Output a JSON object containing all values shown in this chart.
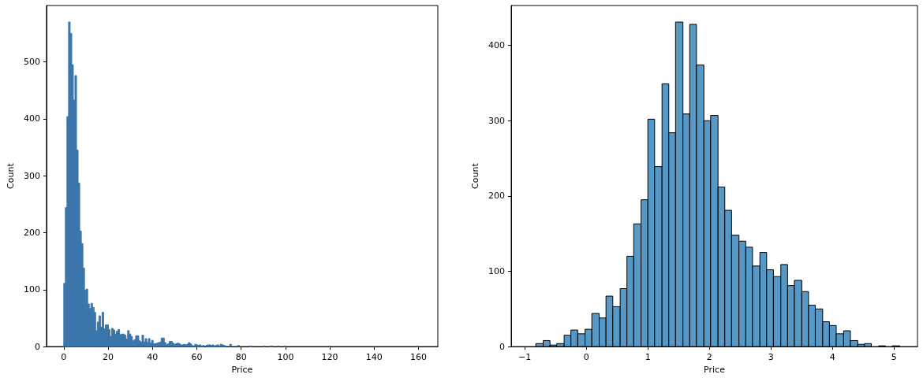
{
  "chart_data": [
    {
      "type": "histogram",
      "xlabel": "Price",
      "ylabel": "Count",
      "color": "#3b76ab",
      "bins": [
        0,
        0.72,
        1.44,
        2.16,
        2.88,
        3.6,
        4.32,
        5.04,
        5.76,
        6.48,
        7.2,
        7.92,
        8.64,
        9.36,
        10.08,
        10.8,
        11.52,
        12.24,
        12.96,
        13.68,
        14.4,
        15.12,
        15.84,
        16.56,
        17.28,
        18,
        18.72,
        19.44,
        20.16,
        20.88,
        21.6,
        22.32,
        23.04,
        23.76,
        24.48,
        25.2,
        25.92,
        26.64,
        27.36,
        28.08,
        28.8,
        29.52,
        30.24,
        30.96,
        31.68,
        32.4,
        33.12,
        33.84,
        34.56,
        35.28,
        36,
        36.72,
        37.44,
        38.16,
        38.88,
        39.6,
        40.32,
        41.04,
        41.76,
        42.48,
        43.2,
        43.92,
        44.64,
        45.36,
        46.08,
        46.8,
        47.52,
        48.24,
        48.96,
        49.68,
        50.4,
        51.12,
        51.84,
        52.56,
        53.28,
        54,
        54.72,
        55.44,
        56.16,
        56.88,
        57.6,
        58.32,
        59.04,
        59.76,
        60.48,
        61.2,
        61.92,
        62.64,
        63.36,
        64.08,
        64.8,
        65.52,
        66.24,
        66.96,
        67.68,
        68.4,
        69.12,
        69.84,
        70.56,
        71.28,
        72,
        72.72,
        73.44,
        74.88,
        75.6,
        78.48,
        79.2,
        83.52,
        84.24,
        84.96,
        90,
        90.72,
        92.88,
        93.6,
        94.32,
        96.48,
        97.2,
        99.36,
        100.08,
        119.52,
        120.24,
        159.12,
        159.84
      ],
      "values": [
        111,
        244,
        404,
        570,
        550,
        495,
        433,
        476,
        345,
        287,
        203,
        181,
        138,
        99,
        101,
        75,
        67,
        76,
        69,
        60,
        28,
        43,
        54,
        34,
        60,
        31,
        38,
        38,
        30,
        18,
        32,
        29,
        22,
        27,
        30,
        21,
        22,
        22,
        20,
        13,
        28,
        22,
        18,
        10,
        12,
        19,
        19,
        10,
        8,
        20,
        8,
        14,
        7,
        14,
        6,
        11,
        5,
        5,
        6,
        7,
        8,
        15,
        15,
        7,
        3,
        5,
        9,
        9,
        6,
        4,
        5,
        6,
        5,
        3,
        3,
        4,
        3,
        4,
        7,
        5,
        2,
        1,
        4,
        3,
        2,
        3,
        1,
        2,
        0,
        2,
        3,
        3,
        2,
        3,
        1,
        2,
        3,
        1,
        4,
        3,
        2,
        1,
        0,
        4,
        0,
        2,
        0,
        1,
        1,
        0,
        1,
        0,
        1,
        1,
        0,
        1,
        0,
        1,
        0,
        1,
        0,
        1
      ],
      "xlim": [
        -7.8,
        168.7
      ],
      "xticks": [
        0,
        20,
        40,
        60,
        80,
        100,
        120,
        140,
        160
      ],
      "ylim": [
        0,
        599
      ],
      "yticks": [
        0,
        100,
        200,
        300,
        400,
        500
      ]
    },
    {
      "type": "histogram",
      "xlabel": "Price",
      "ylabel": "Count",
      "color": "#5799c6",
      "bins": [
        -0.82,
        -0.7,
        -0.59,
        -0.48,
        -0.36,
        -0.25,
        -0.14,
        -0.02,
        0.09,
        0.21,
        0.32,
        0.43,
        0.55,
        0.66,
        0.77,
        0.89,
        1.0,
        1.11,
        1.23,
        1.34,
        1.45,
        1.57,
        1.68,
        1.79,
        1.91,
        2.02,
        2.14,
        2.25,
        2.36,
        2.48,
        2.59,
        2.7,
        2.82,
        2.93,
        3.04,
        3.16,
        3.27,
        3.38,
        3.5,
        3.61,
        3.72,
        3.84,
        3.95,
        4.06,
        4.18,
        4.29,
        4.41,
        4.52,
        4.63,
        4.75,
        4.86,
        4.97,
        5.09
      ],
      "values": [
        4,
        8,
        2,
        4,
        15,
        22,
        17,
        23,
        44,
        38,
        67,
        53,
        77,
        120,
        163,
        195,
        302,
        239,
        349,
        284,
        431,
        309,
        428,
        374,
        300,
        307,
        212,
        181,
        148,
        140,
        132,
        107,
        125,
        102,
        93,
        109,
        81,
        88,
        73,
        55,
        50,
        33,
        28,
        17,
        21,
        8,
        3,
        4,
        0,
        1,
        0,
        1
      ],
      "xlim": [
        -1.22,
        5.38
      ],
      "xticks": [
        {
          "value": -1,
          "label": "−1"
        },
        0,
        1,
        2,
        3,
        4,
        5
      ],
      "ylim": [
        0,
        453
      ],
      "yticks": [
        0,
        100,
        200,
        300,
        400
      ]
    }
  ]
}
